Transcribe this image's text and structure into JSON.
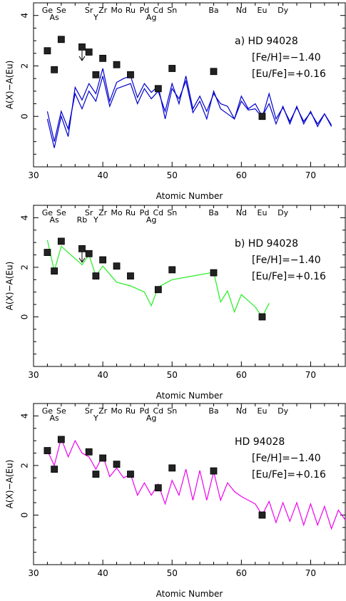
{
  "chart_data": [
    {
      "type": "line",
      "panel_label": "a)",
      "star": "HD 94028",
      "feh": "[Fe/H]=−1.40",
      "eufe": "[Eu/Fe]=+0.16",
      "xlabel": "Atomic Number",
      "ylabel": "A(X)−A(Eu)",
      "xlim": [
        30,
        75
      ],
      "ylim": [
        -2,
        4.5
      ],
      "xticks": [
        30,
        40,
        50,
        60,
        70
      ],
      "yticks": [
        0,
        2,
        4
      ],
      "element_labels": [
        {
          "t": "Ge",
          "x": 32,
          "row": 0
        },
        {
          "t": "As",
          "x": 33,
          "row": 1
        },
        {
          "t": "Se",
          "x": 34,
          "row": 0
        },
        {
          "t": "Sr",
          "x": 38,
          "row": 0
        },
        {
          "t": "Y",
          "x": 39,
          "row": 1
        },
        {
          "t": "Zr",
          "x": 40,
          "row": 0
        },
        {
          "t": "Mo",
          "x": 42,
          "row": 0
        },
        {
          "t": "Ru",
          "x": 44,
          "row": 0
        },
        {
          "t": "Pd",
          "x": 46,
          "row": 0
        },
        {
          "t": "Ag",
          "x": 47,
          "row": 1
        },
        {
          "t": "Cd",
          "x": 48,
          "row": 0
        },
        {
          "t": "Sn",
          "x": 50,
          "row": 0
        },
        {
          "t": "Ba",
          "x": 56,
          "row": 0
        },
        {
          "t": "Nd",
          "x": 60,
          "row": 0
        },
        {
          "t": "Eu",
          "x": 63,
          "row": 0
        },
        {
          "t": "Dy",
          "x": 66,
          "row": 0
        }
      ],
      "points": [
        {
          "x": 32,
          "y": 2.6
        },
        {
          "x": 33,
          "y": 1.85
        },
        {
          "x": 34,
          "y": 3.05
        },
        {
          "x": 37,
          "y": 2.75,
          "upper_limit": true
        },
        {
          "x": 38,
          "y": 2.55
        },
        {
          "x": 39,
          "y": 1.65
        },
        {
          "x": 40,
          "y": 2.3
        },
        {
          "x": 42,
          "y": 2.05
        },
        {
          "x": 44,
          "y": 1.65
        },
        {
          "x": 48,
          "y": 1.1
        },
        {
          "x": 50,
          "y": 1.9
        },
        {
          "x": 56,
          "y": 1.78
        },
        {
          "x": 63,
          "y": 0.0
        }
      ],
      "series": [
        {
          "color": "#0000cc",
          "x": [
            32,
            33,
            34,
            35,
            36,
            37,
            38,
            39,
            40,
            41,
            42,
            43,
            44,
            45,
            46,
            47,
            48,
            49,
            50,
            51,
            52,
            53,
            54,
            55,
            56,
            57,
            58,
            59,
            60,
            61,
            62,
            63,
            64,
            65,
            66,
            67,
            68,
            69,
            70,
            71,
            72,
            73
          ],
          "y": [
            0.2,
            -1.0,
            0.2,
            -0.5,
            0.9,
            0.3,
            1.0,
            0.6,
            1.6,
            0.4,
            1.1,
            1.2,
            1.3,
            0.5,
            1.1,
            0.7,
            1.0,
            0.2,
            1.3,
            0.5,
            1.6,
            0.3,
            0.8,
            0.2,
            0.9,
            0.5,
            0.4,
            -0.1,
            0.8,
            0.3,
            0.5,
            0.0,
            0.5,
            -0.3,
            0.4,
            -0.3,
            0.4,
            -0.3,
            0.2,
            -0.4,
            0.1,
            -0.4
          ]
        },
        {
          "color": "#0000cc",
          "x": [
            32,
            33,
            34,
            35,
            36,
            37,
            38,
            39,
            40,
            41,
            42,
            43,
            44,
            45,
            46,
            47,
            48,
            49,
            50,
            51,
            52,
            53,
            54,
            55,
            56,
            57,
            58,
            59,
            60,
            61,
            62,
            63,
            64,
            65,
            66,
            67,
            68,
            69,
            70,
            71,
            72,
            73
          ],
          "y": [
            -0.1,
            -1.25,
            0.0,
            -0.8,
            1.15,
            0.65,
            1.3,
            0.9,
            1.9,
            0.6,
            1.35,
            1.5,
            1.6,
            0.75,
            1.3,
            0.95,
            1.2,
            -0.1,
            1.1,
            0.7,
            1.4,
            0.15,
            0.6,
            -0.1,
            1.0,
            0.3,
            0.1,
            -0.1,
            0.6,
            0.25,
            0.3,
            -0.05,
            0.9,
            -0.1,
            0.35,
            -0.2,
            0.35,
            -0.2,
            0.15,
            -0.3,
            0.1,
            -0.35
          ]
        }
      ]
    },
    {
      "type": "line",
      "panel_label": "b)",
      "star": "HD 94028",
      "feh": "[Fe/H]=−1.40",
      "eufe": "[Eu/Fe]=+0.16",
      "xlabel": "Atomic Number",
      "ylabel": "A(X)−A(Eu)",
      "xlim": [
        30,
        75
      ],
      "ylim": [
        -2,
        4.5
      ],
      "xticks": [
        30,
        40,
        50,
        60,
        70
      ],
      "yticks": [
        0,
        2,
        4
      ],
      "element_labels": [
        {
          "t": "Ge",
          "x": 32,
          "row": 0
        },
        {
          "t": "As",
          "x": 33,
          "row": 1
        },
        {
          "t": "Se",
          "x": 34,
          "row": 0
        },
        {
          "t": "Rb",
          "x": 37,
          "row": 1
        },
        {
          "t": "Sr",
          "x": 38,
          "row": 0
        },
        {
          "t": "Y",
          "x": 39,
          "row": 1
        },
        {
          "t": "Zr",
          "x": 40,
          "row": 0
        },
        {
          "t": "Mo",
          "x": 42,
          "row": 0
        },
        {
          "t": "Ru",
          "x": 44,
          "row": 0
        },
        {
          "t": "Pd",
          "x": 46,
          "row": 0
        },
        {
          "t": "Ag",
          "x": 47,
          "row": 1
        },
        {
          "t": "Cd",
          "x": 48,
          "row": 0
        },
        {
          "t": "Sn",
          "x": 50,
          "row": 0
        },
        {
          "t": "Ba",
          "x": 56,
          "row": 0
        },
        {
          "t": "Nd",
          "x": 60,
          "row": 0
        },
        {
          "t": "Eu",
          "x": 63,
          "row": 0
        },
        {
          "t": "Dy",
          "x": 66,
          "row": 0
        }
      ],
      "points": [
        {
          "x": 32,
          "y": 2.6
        },
        {
          "x": 33,
          "y": 1.85
        },
        {
          "x": 34,
          "y": 3.05
        },
        {
          "x": 37,
          "y": 2.75,
          "upper_limit": true
        },
        {
          "x": 38,
          "y": 2.55
        },
        {
          "x": 39,
          "y": 1.65
        },
        {
          "x": 40,
          "y": 2.3
        },
        {
          "x": 42,
          "y": 2.05
        },
        {
          "x": 44,
          "y": 1.65
        },
        {
          "x": 48,
          "y": 1.1
        },
        {
          "x": 50,
          "y": 1.9
        },
        {
          "x": 56,
          "y": 1.78
        },
        {
          "x": 63,
          "y": 0.0
        }
      ],
      "series": [
        {
          "color": "#22ee22",
          "x": [
            32,
            33,
            34,
            37,
            38,
            39,
            40,
            42,
            44,
            46,
            47,
            48,
            50,
            56,
            57,
            58,
            59,
            60,
            62,
            63,
            64
          ],
          "y": [
            3.1,
            1.85,
            2.85,
            2.1,
            2.5,
            1.65,
            2.05,
            1.4,
            1.25,
            1.0,
            0.45,
            1.2,
            1.5,
            1.8,
            0.6,
            1.05,
            0.2,
            0.9,
            0.4,
            0.0,
            0.55
          ]
        }
      ]
    },
    {
      "type": "line",
      "panel_label": "",
      "star": "HD 94028",
      "feh": "[Fe/H]=−1.40",
      "eufe": "[Eu/Fe]=+0.16",
      "xlabel": "Atomic Number",
      "ylabel": "A(X)−A(Eu)",
      "xlim": [
        30,
        75
      ],
      "ylim": [
        -2,
        4.5
      ],
      "xticks": [
        30,
        40,
        50,
        60,
        70
      ],
      "yticks": [
        0,
        2,
        4
      ],
      "element_labels": [
        {
          "t": "Ge",
          "x": 32,
          "row": 0
        },
        {
          "t": "As",
          "x": 33,
          "row": 1
        },
        {
          "t": "Se",
          "x": 34,
          "row": 0
        },
        {
          "t": "Sr",
          "x": 38,
          "row": 0
        },
        {
          "t": "Y",
          "x": 39,
          "row": 1
        },
        {
          "t": "Zr",
          "x": 40,
          "row": 0
        },
        {
          "t": "Mo",
          "x": 42,
          "row": 0
        },
        {
          "t": "Ru",
          "x": 44,
          "row": 0
        },
        {
          "t": "Pd",
          "x": 46,
          "row": 0
        },
        {
          "t": "Ag",
          "x": 47,
          "row": 1
        },
        {
          "t": "Cd",
          "x": 48,
          "row": 0
        },
        {
          "t": "Sn",
          "x": 50,
          "row": 0
        },
        {
          "t": "Ba",
          "x": 56,
          "row": 0
        },
        {
          "t": "Nd",
          "x": 60,
          "row": 0
        },
        {
          "t": "Eu",
          "x": 63,
          "row": 0
        },
        {
          "t": "Dy",
          "x": 66,
          "row": 0
        }
      ],
      "points": [
        {
          "x": 32,
          "y": 2.6
        },
        {
          "x": 33,
          "y": 1.85
        },
        {
          "x": 34,
          "y": 3.05
        },
        {
          "x": 38,
          "y": 2.55
        },
        {
          "x": 39,
          "y": 1.65
        },
        {
          "x": 40,
          "y": 2.3
        },
        {
          "x": 42,
          "y": 2.05
        },
        {
          "x": 44,
          "y": 1.65
        },
        {
          "x": 48,
          "y": 1.1
        },
        {
          "x": 50,
          "y": 1.9
        },
        {
          "x": 56,
          "y": 1.78
        },
        {
          "x": 63,
          "y": 0.0
        }
      ],
      "series": [
        {
          "color": "#ee00ee",
          "x": [
            32,
            33,
            34,
            35,
            36,
            37,
            38,
            39,
            40,
            41,
            42,
            43,
            44,
            45,
            46,
            47,
            48,
            49,
            50,
            51,
            52,
            53,
            54,
            55,
            56,
            57,
            58,
            59,
            60,
            61,
            62,
            63,
            64,
            65,
            66,
            67,
            68,
            69,
            70,
            71,
            72,
            73,
            74,
            75
          ],
          "y": [
            2.6,
            2.0,
            3.1,
            2.35,
            3.0,
            2.5,
            2.35,
            1.85,
            2.4,
            1.55,
            1.9,
            1.5,
            1.65,
            0.8,
            1.3,
            0.8,
            1.25,
            0.45,
            1.4,
            0.8,
            1.85,
            0.6,
            1.8,
            0.6,
            1.75,
            0.6,
            1.3,
            0.95,
            0.75,
            0.6,
            0.45,
            0.0,
            0.55,
            -0.3,
            0.5,
            -0.25,
            0.5,
            -0.4,
            0.45,
            -0.4,
            0.35,
            -0.55,
            0.2,
            -0.2
          ]
        }
      ]
    }
  ]
}
